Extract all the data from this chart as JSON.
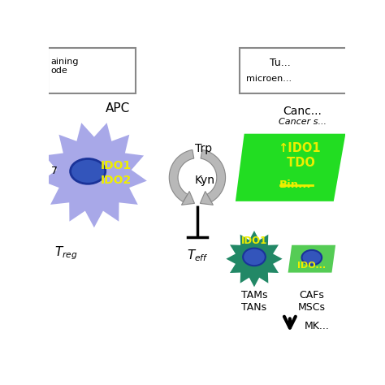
{
  "bg_color": "#ffffff",
  "apc_color": "#9999dd",
  "nucleus_color": "#3355bb",
  "nucleus_edge": "#1a3399",
  "tams_color": "#228866",
  "cafs_color": "#44bb44",
  "cancer_trap_color": "#22dd22",
  "yellow": "#eeee00",
  "gray_arrow": "#999999",
  "gray_fill": "#aaaaaa",
  "black": "#111111",
  "trp_text": "Trp",
  "kyn_text": "Kyn",
  "teff_text": "T_eff",
  "treg_text": "T_reg",
  "apc_text": "APC",
  "ido1_ido2": "IDO1\nIDO2",
  "ido1_tdo": "↑IDO1\nTDO",
  "bin_text": "Bin...",
  "ido1_tams": "IDO1",
  "ido1_cafs": "IDO...",
  "tams_text": "TAMs\nTANs",
  "cafs_text": "CAFs\nMSCs",
  "canc_text": "Canc...",
  "cancer_s_text": "Cancer s...",
  "mk_text": "MK..."
}
